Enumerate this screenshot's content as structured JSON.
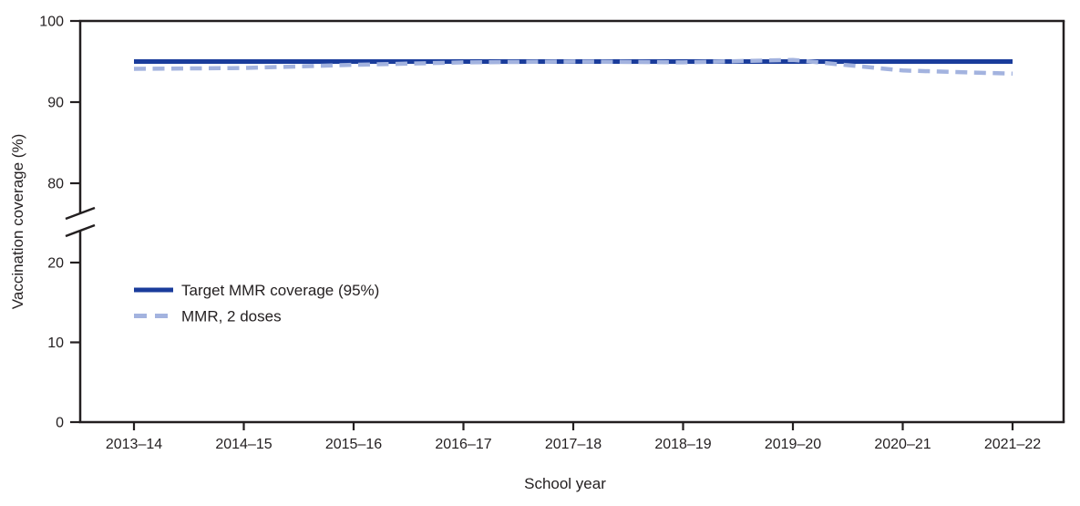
{
  "chart_data": {
    "type": "line",
    "title": "",
    "xlabel": "School year",
    "ylabel": "Vaccination coverage (%)",
    "categories": [
      "2013–14",
      "2014–15",
      "2015–16",
      "2016–17",
      "2017–18",
      "2018–19",
      "2019–20",
      "2020–21",
      "2021–22"
    ],
    "series": [
      {
        "name": "Target MMR coverage (95%)",
        "line_style": "solid",
        "color": "#1a3c9b",
        "values": [
          95,
          95,
          95,
          95,
          95,
          95,
          95,
          95,
          95
        ]
      },
      {
        "name": "MMR, 2 doses",
        "line_style": "dashed",
        "color": "#a3b3df",
        "values": [
          94.1,
          94.2,
          94.6,
          94.9,
          95.0,
          94.9,
          95.2,
          93.9,
          93.5
        ]
      }
    ],
    "y_axis": {
      "upper_segment_ticks": [
        80,
        90,
        100
      ],
      "lower_segment_ticks": [
        0,
        10,
        20
      ],
      "axis_break": true,
      "upper_range": [
        78,
        100
      ],
      "lower_range": [
        0,
        22
      ]
    },
    "grid": false,
    "legend_position": "inside-left",
    "axis_color": "#231f20",
    "background_color": "#ffffff"
  }
}
